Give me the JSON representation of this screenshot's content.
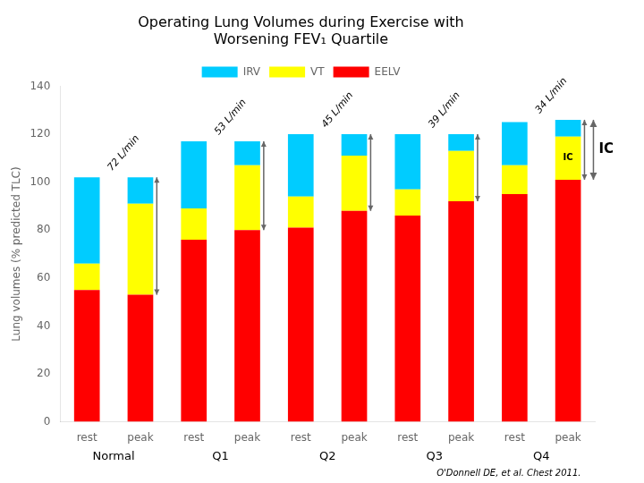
{
  "chart_data": {
    "type": "bar",
    "stacked": true,
    "title": "Operating Lung Volumes during Exercise with\nWorsening FEV₁ Quartile",
    "y_label": "Lung volumes (% predicted TLC)",
    "categories": [
      "rest",
      "peak",
      "rest",
      "peak",
      "rest",
      "peak",
      "rest",
      "peak",
      "rest",
      "peak"
    ],
    "groups": [
      "Normal",
      "Q1",
      "Q2",
      "Q3",
      "Q4"
    ],
    "series": [
      {
        "name": "EELV",
        "color": "#FF0000",
        "values": [
          55,
          53,
          76,
          80,
          81,
          88,
          86,
          92,
          95,
          101
        ]
      },
      {
        "name": "VT",
        "color": "#FFFF00",
        "values": [
          11,
          38,
          13,
          27,
          13,
          23,
          11,
          21,
          12,
          18
        ]
      },
      {
        "name": "IRV",
        "color": "#00CCFF",
        "values": [
          36,
          11,
          28,
          10,
          26,
          9,
          23,
          7,
          18,
          7
        ]
      }
    ],
    "ylim": [
      0,
      140
    ],
    "yticks": [
      0,
      20,
      40,
      60,
      80,
      100,
      120,
      140
    ],
    "grid": false,
    "legend": "top",
    "arrow_labels": [
      "72 L/min",
      "53 L/min",
      "45 L/min",
      "39 L/min",
      "34 L/min"
    ],
    "ic_label": "IC",
    "citation": "O'Donnell DE, et al. Chest 2011."
  }
}
